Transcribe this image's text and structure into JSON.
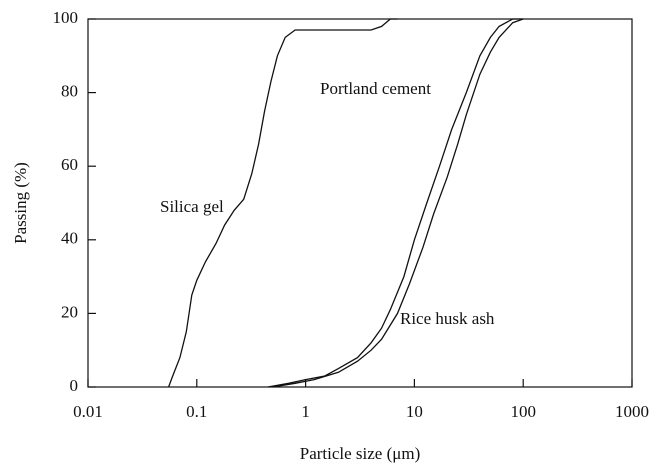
{
  "chart_data": {
    "type": "line",
    "x_label": "Particle size (μm)",
    "y_label": "Passing (%)",
    "log_x": true,
    "xlim": [
      0.01,
      1000
    ],
    "xticks": [
      0.01,
      0.1,
      1,
      10,
      100,
      1000
    ],
    "ylim": [
      0,
      100
    ],
    "yticks": [
      0,
      20,
      40,
      60,
      80,
      100
    ],
    "series": [
      {
        "name": "Silica gel",
        "color": "#111111",
        "x": [
          0.055,
          0.06,
          0.07,
          0.08,
          0.09,
          0.1,
          0.12,
          0.15,
          0.18,
          0.22,
          0.27,
          0.32,
          0.37,
          0.42,
          0.48,
          0.55,
          0.65,
          0.8,
          1,
          2,
          4,
          5,
          6,
          7
        ],
        "values": [
          0,
          3,
          8,
          15,
          25,
          29,
          34,
          39,
          44,
          48,
          51,
          58,
          66,
          75,
          83,
          90,
          95,
          97,
          97,
          97,
          97,
          98,
          100,
          100
        ]
      },
      {
        "name": "Portland cement",
        "color": "#111111",
        "x": [
          0.45,
          0.7,
          1,
          1.5,
          2,
          3,
          4,
          5,
          6,
          8,
          10,
          13,
          17,
          22,
          30,
          40,
          50,
          60,
          80,
          100
        ],
        "values": [
          0,
          1,
          2,
          3,
          5,
          8,
          12,
          16,
          21,
          30,
          40,
          50,
          60,
          70,
          80,
          90,
          95,
          98,
          100,
          100
        ]
      },
      {
        "name": "Rice husk ash",
        "color": "#111111",
        "x": [
          0.5,
          0.8,
          1.2,
          2,
          3,
          4,
          5,
          7,
          9,
          12,
          15,
          20,
          25,
          30,
          40,
          50,
          60,
          80,
          100
        ],
        "values": [
          0,
          1,
          2,
          4,
          7,
          10,
          13,
          20,
          28,
          38,
          47,
          57,
          66,
          74,
          85,
          91,
          95,
          99,
          100
        ]
      }
    ]
  }
}
